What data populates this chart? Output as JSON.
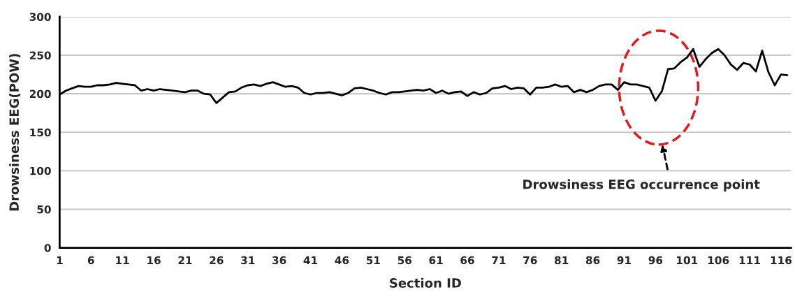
{
  "chart_data": {
    "type": "line",
    "xlabel": "Section ID",
    "ylabel": "Drowsiness EEG(POW)",
    "x": [
      1,
      2,
      3,
      4,
      5,
      6,
      7,
      8,
      9,
      10,
      11,
      12,
      13,
      14,
      15,
      16,
      17,
      18,
      19,
      20,
      21,
      22,
      23,
      24,
      25,
      26,
      27,
      28,
      29,
      30,
      31,
      32,
      33,
      34,
      35,
      36,
      37,
      38,
      39,
      40,
      41,
      42,
      43,
      44,
      45,
      46,
      47,
      48,
      49,
      50,
      51,
      52,
      53,
      54,
      55,
      56,
      57,
      58,
      59,
      60,
      61,
      62,
      63,
      64,
      65,
      66,
      67,
      68,
      69,
      70,
      71,
      72,
      73,
      74,
      75,
      76,
      77,
      78,
      79,
      80,
      81,
      82,
      83,
      84,
      85,
      86,
      87,
      88,
      89,
      90,
      91,
      92,
      93,
      94,
      95,
      96,
      97,
      98,
      99,
      100,
      101,
      102,
      103,
      104,
      105,
      106,
      107,
      108,
      109,
      110,
      111,
      112,
      113,
      114,
      115,
      116,
      117
    ],
    "series": [
      {
        "color": "#000000",
        "values": [
          199,
          204,
          207,
          210,
          209,
          209,
          211,
          211,
          212,
          214,
          213,
          212,
          211,
          204,
          206,
          204,
          206,
          205,
          204,
          203,
          202,
          204,
          204,
          200,
          199,
          188,
          195,
          202,
          203,
          208,
          211,
          212,
          210,
          213,
          215,
          212,
          209,
          210,
          208,
          201,
          199,
          201,
          201,
          202,
          200,
          198,
          201,
          207,
          208,
          206,
          204,
          201,
          199,
          202,
          202,
          203,
          204,
          205,
          204,
          206,
          201,
          204,
          200,
          202,
          203,
          197,
          202,
          199,
          201,
          207,
          208,
          210,
          206,
          208,
          207,
          199,
          208,
          208,
          209,
          212,
          209,
          210,
          202,
          205,
          202,
          205,
          210,
          212,
          212,
          205,
          215,
          212,
          212,
          210,
          208,
          191,
          203,
          232,
          233,
          241,
          247,
          258,
          235,
          245,
          253,
          258,
          250,
          238,
          231,
          240,
          238,
          229,
          256,
          228,
          211,
          225,
          224
        ]
      }
    ],
    "xlim": [
      1,
      117.6
    ],
    "ylim": [
      0,
      300
    ],
    "xticks": [
      1,
      6,
      11,
      16,
      21,
      26,
      31,
      36,
      41,
      46,
      51,
      56,
      61,
      66,
      71,
      76,
      81,
      86,
      91,
      96,
      101,
      106,
      111,
      116
    ],
    "yticks": [
      0,
      50,
      100,
      150,
      200,
      250,
      300
    ],
    "grid": "y",
    "marker": "none",
    "line_style": "solid",
    "annotations": [
      "Drowsiness EEG occurrence point"
    ]
  }
}
